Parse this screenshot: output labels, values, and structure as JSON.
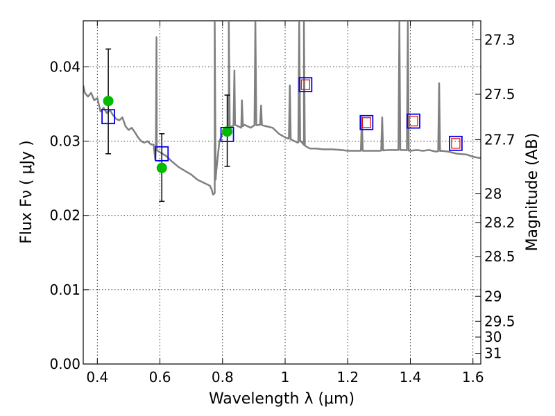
{
  "chart_data": {
    "type": "scatter",
    "xlabel": "Wavelength  λ (μm)",
    "ylabel": "Flux  Fν  ( μJy )",
    "y2label": "Magnitude (AB)",
    "xlim": [
      0.355,
      1.625
    ],
    "ylim": [
      0.0,
      0.0462
    ],
    "x_ticks": [
      {
        "value": 0.4,
        "label": "0.4"
      },
      {
        "value": 0.6,
        "label": "0.6"
      },
      {
        "value": 0.8,
        "label": "0.8"
      },
      {
        "value": 1.0,
        "label": "1"
      },
      {
        "value": 1.2,
        "label": "1.2"
      },
      {
        "value": 1.4,
        "label": "1.4"
      },
      {
        "value": 1.6,
        "label": "1.6"
      }
    ],
    "y_ticks": [
      {
        "value": 0.0,
        "label": "0.00"
      },
      {
        "value": 0.01,
        "label": "0.01"
      },
      {
        "value": 0.02,
        "label": "0.02"
      },
      {
        "value": 0.03,
        "label": "0.03"
      },
      {
        "value": 0.04,
        "label": "0.04"
      }
    ],
    "y2_ticks": [
      {
        "value": 27.3,
        "label": "27.3"
      },
      {
        "value": 27.5,
        "label": "27.5"
      },
      {
        "value": 27.7,
        "label": "27.7"
      },
      {
        "value": 28.0,
        "label": "28"
      },
      {
        "value": 28.2,
        "label": "28.2"
      },
      {
        "value": 28.5,
        "label": "28.5"
      },
      {
        "value": 29.0,
        "label": "29"
      },
      {
        "value": 29.5,
        "label": "29.5"
      },
      {
        "value": 30.0,
        "label": "30"
      },
      {
        "value": 31.0,
        "label": "31"
      }
    ],
    "grid": true,
    "colors": {
      "spectrum": "#808080",
      "observed": "#00bb00",
      "model": "#0000ee",
      "predicted": "#ee0000",
      "errorbar": "#000000"
    },
    "spectrum": {
      "x": [
        0.355,
        0.36,
        0.37,
        0.38,
        0.39,
        0.4,
        0.41,
        0.42,
        0.43,
        0.44,
        0.45,
        0.46,
        0.47,
        0.48,
        0.49,
        0.5,
        0.51,
        0.52,
        0.53,
        0.54,
        0.55,
        0.56,
        0.57,
        0.58,
        0.585,
        0.587,
        0.59,
        0.6,
        0.62,
        0.64,
        0.66,
        0.68,
        0.7,
        0.72,
        0.74,
        0.76,
        0.765,
        0.77,
        0.775,
        0.78,
        0.79,
        0.8,
        0.81,
        0.82,
        0.83,
        0.84,
        0.85,
        0.86,
        0.87,
        0.88,
        0.89,
        0.9,
        0.92,
        0.94,
        0.96,
        0.98,
        1.0,
        1.02,
        1.03,
        1.04,
        1.05,
        1.06,
        1.07,
        1.08,
        1.1,
        1.12,
        1.15,
        1.18,
        1.2,
        1.22,
        1.25,
        1.28,
        1.3,
        1.33,
        1.35,
        1.38,
        1.4,
        1.42,
        1.44,
        1.46,
        1.48,
        1.5,
        1.52,
        1.55,
        1.58,
        1.6,
        1.625
      ],
      "y": [
        0.0375,
        0.0365,
        0.036,
        0.0365,
        0.0355,
        0.0358,
        0.034,
        0.0345,
        0.0338,
        0.0342,
        0.0335,
        0.033,
        0.0328,
        0.0332,
        0.032,
        0.0315,
        0.0318,
        0.0312,
        0.0305,
        0.03,
        0.0298,
        0.03,
        0.0296,
        0.0295,
        0.0275,
        0.029,
        0.0288,
        0.0285,
        0.028,
        0.0272,
        0.0265,
        0.026,
        0.0255,
        0.0248,
        0.0244,
        0.024,
        0.0235,
        0.0228,
        0.023,
        0.026,
        0.03,
        0.031,
        0.0315,
        0.0318,
        0.032,
        0.0322,
        0.032,
        0.0318,
        0.0322,
        0.032,
        0.0318,
        0.0321,
        0.0322,
        0.032,
        0.0318,
        0.031,
        0.0305,
        0.0302,
        0.03,
        0.0298,
        0.03,
        0.0295,
        0.0292,
        0.029,
        0.029,
        0.0289,
        0.0289,
        0.0288,
        0.0287,
        0.0287,
        0.0287,
        0.0287,
        0.0287,
        0.0288,
        0.0288,
        0.0288,
        0.0287,
        0.0288,
        0.0287,
        0.0288,
        0.0286,
        0.0287,
        0.0286,
        0.0283,
        0.0282,
        0.0279,
        0.0277
      ],
      "emission_lines": [
        {
          "x": 0.589,
          "peak": 0.044
        },
        {
          "x": 0.775,
          "peak": 0.046
        },
        {
          "x": 0.82,
          "peak": 0.046
        },
        {
          "x": 0.838,
          "peak": 0.0395
        },
        {
          "x": 0.862,
          "peak": 0.0355
        },
        {
          "x": 0.905,
          "peak": 0.046
        },
        {
          "x": 0.923,
          "peak": 0.0348
        },
        {
          "x": 1.015,
          "peak": 0.0375
        },
        {
          "x": 1.045,
          "peak": 0.046
        },
        {
          "x": 1.06,
          "peak": 0.046
        },
        {
          "x": 1.245,
          "peak": 0.0332
        },
        {
          "x": 1.31,
          "peak": 0.0332
        },
        {
          "x": 1.365,
          "peak": 0.046
        },
        {
          "x": 1.392,
          "peak": 0.046
        },
        {
          "x": 1.492,
          "peak": 0.0378
        }
      ]
    },
    "series": [
      {
        "kind": "observed",
        "x": [
          0.435,
          0.606,
          0.815
        ],
        "y": [
          0.0354,
          0.0264,
          0.0313
        ],
        "yerr_low": [
          0.0283,
          0.0219,
          0.0266
        ],
        "yerr_high": [
          0.0424,
          0.031,
          0.0362
        ]
      },
      {
        "kind": "model",
        "x": [
          0.435,
          0.606,
          0.815,
          1.065,
          1.26,
          1.41,
          1.545
        ],
        "y": [
          0.0333,
          0.0283,
          0.0309,
          0.0376,
          0.0325,
          0.0327,
          0.0297
        ]
      },
      {
        "kind": "predicted",
        "x": [
          1.065,
          1.26,
          1.41,
          1.545
        ],
        "y": [
          0.0376,
          0.0325,
          0.0327,
          0.0297
        ]
      }
    ]
  }
}
